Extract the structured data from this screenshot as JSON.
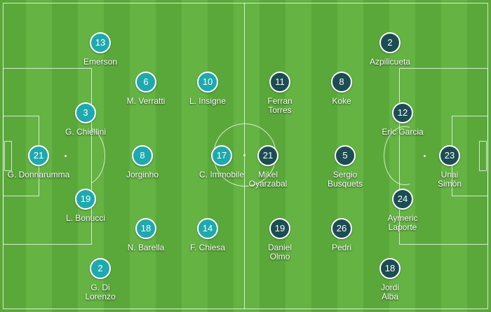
{
  "colors": {
    "home": "#1ea9ae",
    "away": "#1c4d52",
    "pitch_light": "#64b343",
    "pitch_dark": "#5aa83a"
  },
  "home": {
    "players": [
      {
        "number": "13",
        "name": "Emerson"
      },
      {
        "number": "6",
        "name": "M. Verratti"
      },
      {
        "number": "10",
        "name": "L. Insigne"
      },
      {
        "number": "3",
        "name": "G. Chiellini"
      },
      {
        "number": "21",
        "name": "G. Donnarumma"
      },
      {
        "number": "8",
        "name": "Jorginho"
      },
      {
        "number": "17",
        "name": "C. Immobile"
      },
      {
        "number": "19",
        "name": "L. Bonucci"
      },
      {
        "number": "18",
        "name": "N. Barella"
      },
      {
        "number": "14",
        "name": "F. Chiesa"
      },
      {
        "number": "2",
        "name": "G. Di Lorenzo"
      }
    ]
  },
  "away": {
    "players": [
      {
        "number": "2",
        "name": "Azpilicueta"
      },
      {
        "number": "11",
        "name": "Ferran Torres"
      },
      {
        "number": "8",
        "name": "Koke"
      },
      {
        "number": "12",
        "name": "Eric Garcia"
      },
      {
        "number": "21",
        "name": "Mikel Oyarzabal"
      },
      {
        "number": "5",
        "name": "Sergio Busquets"
      },
      {
        "number": "23",
        "name": "Unai Simón"
      },
      {
        "number": "24",
        "name": "Aymeric Laporte"
      },
      {
        "number": "19",
        "name": "Daniel Olmo"
      },
      {
        "number": "26",
        "name": "Pedri"
      },
      {
        "number": "18",
        "name": "Jordi Alba"
      }
    ]
  }
}
